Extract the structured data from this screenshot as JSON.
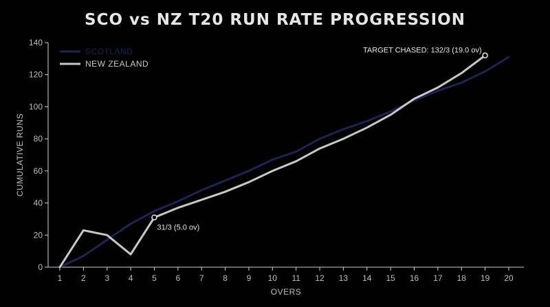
{
  "chart_data": {
    "type": "line",
    "title": "SCO vs NZ T20 RUN RATE PROGRESSION",
    "xlabel": "OVERS",
    "ylabel": "CUMULATIVE RUNS",
    "xlim": [
      1,
      20
    ],
    "ylim": [
      0,
      140
    ],
    "x_ticks": [
      "1",
      "2",
      "3",
      "4",
      "5",
      "6",
      "7",
      "8",
      "9",
      "10",
      "11",
      "12",
      "13",
      "14",
      "15",
      "16",
      "17",
      "18",
      "19",
      "20"
    ],
    "y_ticks": [
      "0",
      "20",
      "40",
      "60",
      "80",
      "100",
      "120",
      "140"
    ],
    "legend_position": "top-left",
    "grid": false,
    "series": [
      {
        "name": "SCOTLAND",
        "color": "#1f2352",
        "x": [
          1,
          2,
          3,
          4,
          5,
          6,
          7,
          8,
          9,
          10,
          11,
          12,
          13,
          14,
          15,
          16,
          17,
          18,
          19,
          20
        ],
        "values": [
          0,
          7,
          17,
          27,
          35,
          41,
          48,
          54,
          60,
          67,
          72,
          80,
          86,
          91,
          97,
          104,
          110,
          115,
          122,
          131
        ]
      },
      {
        "name": "NEW ZEALAND",
        "color": "#c8c8c8",
        "x": [
          1,
          2,
          3,
          4,
          5,
          6,
          7,
          8,
          9,
          10,
          11,
          12,
          13,
          14,
          15,
          16,
          17,
          18,
          19
        ],
        "values": [
          0,
          23,
          20,
          8,
          31,
          37,
          42,
          47,
          53,
          60,
          66,
          74,
          80,
          87,
          95,
          105,
          112,
          121,
          132
        ]
      }
    ],
    "annotations": [
      {
        "text": "31/3 (5.0 ov)",
        "x": 5,
        "y": 31
      },
      {
        "text": "TARGET CHASED: 132/3 (19.0 ov)",
        "x": 19,
        "y": 132
      }
    ]
  }
}
